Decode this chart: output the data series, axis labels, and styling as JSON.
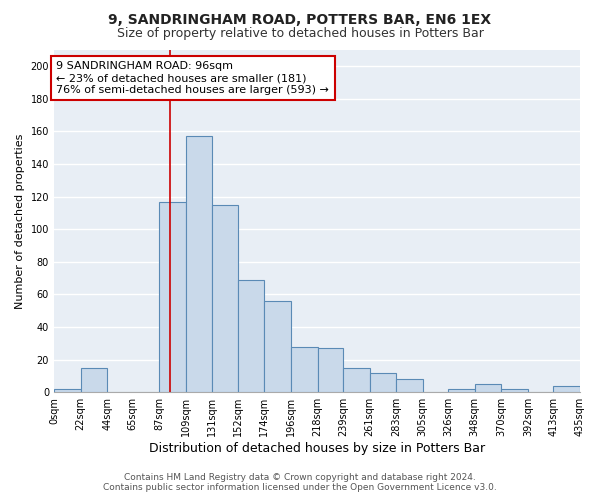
{
  "title": "9, SANDRINGHAM ROAD, POTTERS BAR, EN6 1EX",
  "subtitle": "Size of property relative to detached houses in Potters Bar",
  "xlabel": "Distribution of detached houses by size in Potters Bar",
  "ylabel": "Number of detached properties",
  "bar_color": "#c9d9ea",
  "bar_edge_color": "#5a8ab5",
  "background_color": "#e8eef5",
  "grid_color": "#ffffff",
  "bins": [
    0,
    22,
    44,
    65,
    87,
    109,
    131,
    152,
    174,
    196,
    218,
    239,
    261,
    283,
    305,
    326,
    348,
    370,
    392,
    413,
    435
  ],
  "tick_labels": [
    "0sqm",
    "22sqm",
    "44sqm",
    "65sqm",
    "87sqm",
    "109sqm",
    "131sqm",
    "152sqm",
    "174sqm",
    "196sqm",
    "218sqm",
    "239sqm",
    "261sqm",
    "283sqm",
    "305sqm",
    "326sqm",
    "348sqm",
    "370sqm",
    "392sqm",
    "413sqm",
    "435sqm"
  ],
  "bar_heights": [
    2,
    15,
    0,
    0,
    117,
    157,
    115,
    69,
    56,
    28,
    27,
    15,
    12,
    8,
    0,
    2,
    5,
    2,
    0,
    4
  ],
  "vline_x": 96,
  "vline_color": "#cc0000",
  "annotation_line1": "9 SANDRINGHAM ROAD: 96sqm",
  "annotation_line2": "← 23% of detached houses are smaller (181)",
  "annotation_line3": "76% of semi-detached houses are larger (593) →",
  "annotation_box_color": "#ffffff",
  "annotation_box_edge": "#cc0000",
  "ylim": [
    0,
    210
  ],
  "yticks": [
    0,
    20,
    40,
    60,
    80,
    100,
    120,
    140,
    160,
    180,
    200
  ],
  "footer_line1": "Contains HM Land Registry data © Crown copyright and database right 2024.",
  "footer_line2": "Contains public sector information licensed under the Open Government Licence v3.0.",
  "title_fontsize": 10,
  "subtitle_fontsize": 9,
  "ylabel_fontsize": 8,
  "xlabel_fontsize": 9,
  "tick_fontsize": 7,
  "annotation_fontsize": 8,
  "footer_fontsize": 6.5
}
